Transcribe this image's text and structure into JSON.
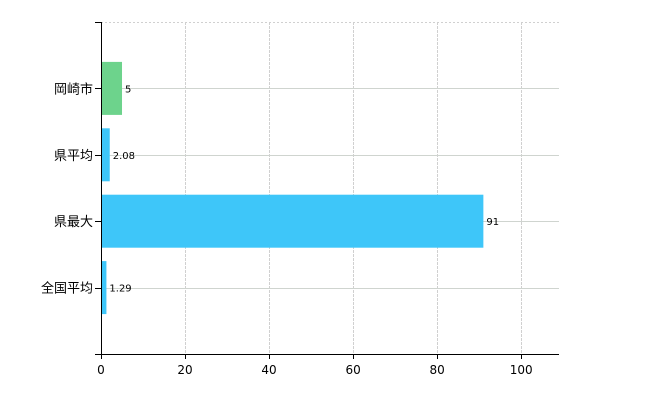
{
  "chart_data": {
    "type": "bar",
    "orientation": "horizontal",
    "title": "",
    "xlabel": "",
    "ylabel": "",
    "categories": [
      "岡崎市",
      "県平均",
      "県最大",
      "全国平均"
    ],
    "values": [
      5,
      2.08,
      91,
      1.29
    ],
    "data_labels": [
      "5",
      "2.08",
      "91",
      "1.29"
    ],
    "bar_colors": [
      "#6dd38c",
      "#3ec6f9",
      "#3ec6f9",
      "#3ec6f9"
    ],
    "xlim": [
      0,
      109
    ],
    "x_ticks": [
      0,
      20,
      40,
      60,
      80,
      100
    ],
    "x_tick_labels": [
      "0",
      "20",
      "40",
      "60",
      "80",
      "100"
    ],
    "grid": true,
    "legend": "none"
  }
}
